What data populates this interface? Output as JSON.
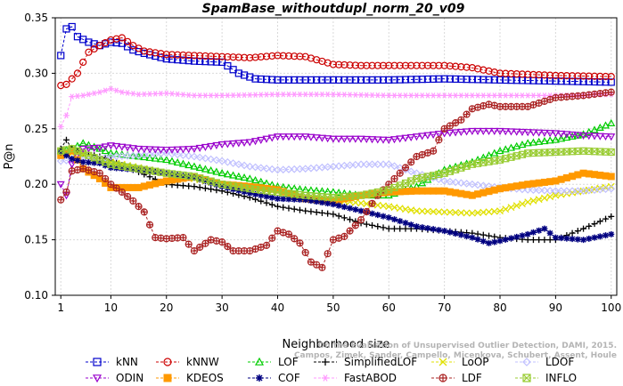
{
  "chart_data": {
    "type": "line",
    "title": "SpamBase_withoutdupl_norm_20_v09",
    "xlabel": "Neighborhood size",
    "ylabel": "P@n",
    "xlim": [
      0,
      101
    ],
    "ylim": [
      0.1,
      0.35
    ],
    "xticks": [
      1,
      10,
      20,
      30,
      40,
      50,
      60,
      70,
      80,
      90,
      100
    ],
    "yticks": [
      0.1,
      0.15,
      0.2,
      0.25,
      0.3,
      0.35
    ],
    "ytick_labels": [
      "0.10",
      "0.15",
      "0.20",
      "0.25",
      "0.30",
      "0.35"
    ],
    "grid": true,
    "legend_position": "bottom",
    "credit": "Campos, Zimek, Sander, Campello, Micenkova, Schubert, Assent, Houle",
    "credit2": "On the Evaluation of Unsupervised Outlier Detection, DAMI, 2015.",
    "series": [
      {
        "name": "kNN",
        "color": "#0000cc",
        "marker": "square",
        "points": [
          [
            1,
            0.316
          ],
          [
            2,
            0.34
          ],
          [
            3,
            0.342
          ],
          [
            4,
            0.333
          ],
          [
            6,
            0.328
          ],
          [
            8,
            0.325
          ],
          [
            10,
            0.328
          ],
          [
            12,
            0.327
          ],
          [
            14,
            0.321
          ],
          [
            16,
            0.318
          ],
          [
            20,
            0.313
          ],
          [
            25,
            0.311
          ],
          [
            30,
            0.31
          ],
          [
            33,
            0.3
          ],
          [
            36,
            0.295
          ],
          [
            40,
            0.294
          ],
          [
            50,
            0.294
          ],
          [
            60,
            0.294
          ],
          [
            70,
            0.295
          ],
          [
            80,
            0.294
          ],
          [
            90,
            0.293
          ],
          [
            100,
            0.292
          ]
        ]
      },
      {
        "name": "kNNW",
        "color": "#cc0000",
        "marker": "circle",
        "points": [
          [
            1,
            0.289
          ],
          [
            2,
            0.29
          ],
          [
            3,
            0.295
          ],
          [
            4,
            0.3
          ],
          [
            5,
            0.31
          ],
          [
            6,
            0.319
          ],
          [
            7,
            0.322
          ],
          [
            8,
            0.325
          ],
          [
            10,
            0.33
          ],
          [
            12,
            0.332
          ],
          [
            14,
            0.325
          ],
          [
            16,
            0.32
          ],
          [
            20,
            0.317
          ],
          [
            25,
            0.316
          ],
          [
            30,
            0.315
          ],
          [
            35,
            0.314
          ],
          [
            40,
            0.316
          ],
          [
            45,
            0.315
          ],
          [
            50,
            0.308
          ],
          [
            55,
            0.307
          ],
          [
            60,
            0.307
          ],
          [
            70,
            0.307
          ],
          [
            75,
            0.305
          ],
          [
            80,
            0.3
          ],
          [
            90,
            0.298
          ],
          [
            100,
            0.297
          ]
        ]
      },
      {
        "name": "LOF",
        "color": "#00cc00",
        "marker": "triangle-up",
        "points": [
          [
            1,
            0.23
          ],
          [
            3,
            0.232
          ],
          [
            5,
            0.237
          ],
          [
            8,
            0.232
          ],
          [
            10,
            0.228
          ],
          [
            15,
            0.225
          ],
          [
            20,
            0.222
          ],
          [
            25,
            0.216
          ],
          [
            30,
            0.21
          ],
          [
            35,
            0.205
          ],
          [
            40,
            0.198
          ],
          [
            45,
            0.195
          ],
          [
            50,
            0.193
          ],
          [
            55,
            0.19
          ],
          [
            60,
            0.19
          ],
          [
            65,
            0.198
          ],
          [
            70,
            0.213
          ],
          [
            75,
            0.22
          ],
          [
            80,
            0.23
          ],
          [
            85,
            0.237
          ],
          [
            90,
            0.24
          ],
          [
            95,
            0.245
          ],
          [
            100,
            0.255
          ]
        ]
      },
      {
        "name": "SimplifiedLOF",
        "color": "#000000",
        "marker": "plus",
        "points": [
          [
            1,
            0.232
          ],
          [
            2,
            0.24
          ],
          [
            3,
            0.232
          ],
          [
            5,
            0.228
          ],
          [
            8,
            0.225
          ],
          [
            10,
            0.222
          ],
          [
            13,
            0.215
          ],
          [
            16,
            0.209
          ],
          [
            20,
            0.2
          ],
          [
            25,
            0.198
          ],
          [
            30,
            0.194
          ],
          [
            35,
            0.188
          ],
          [
            40,
            0.18
          ],
          [
            45,
            0.176
          ],
          [
            50,
            0.173
          ],
          [
            55,
            0.165
          ],
          [
            60,
            0.16
          ],
          [
            65,
            0.16
          ],
          [
            70,
            0.158
          ],
          [
            75,
            0.156
          ],
          [
            80,
            0.152
          ],
          [
            85,
            0.15
          ],
          [
            90,
            0.15
          ],
          [
            95,
            0.16
          ],
          [
            100,
            0.171
          ]
        ]
      },
      {
        "name": "LoOP",
        "color": "#e0e000",
        "marker": "cross",
        "points": [
          [
            1,
            0.229
          ],
          [
            3,
            0.228
          ],
          [
            5,
            0.227
          ],
          [
            8,
            0.222
          ],
          [
            10,
            0.22
          ],
          [
            15,
            0.215
          ],
          [
            20,
            0.21
          ],
          [
            25,
            0.205
          ],
          [
            30,
            0.2
          ],
          [
            35,
            0.196
          ],
          [
            40,
            0.193
          ],
          [
            45,
            0.188
          ],
          [
            50,
            0.186
          ],
          [
            55,
            0.183
          ],
          [
            60,
            0.18
          ],
          [
            65,
            0.176
          ],
          [
            70,
            0.175
          ],
          [
            75,
            0.174
          ],
          [
            80,
            0.176
          ],
          [
            85,
            0.184
          ],
          [
            90,
            0.19
          ],
          [
            95,
            0.194
          ],
          [
            100,
            0.198
          ]
        ]
      },
      {
        "name": "LDOF",
        "color": "#c0c0ff",
        "marker": "diamond",
        "points": [
          [
            1,
            0.221
          ],
          [
            3,
            0.222
          ],
          [
            5,
            0.222
          ],
          [
            8,
            0.223
          ],
          [
            10,
            0.225
          ],
          [
            15,
            0.226
          ],
          [
            20,
            0.228
          ],
          [
            25,
            0.225
          ],
          [
            30,
            0.221
          ],
          [
            35,
            0.216
          ],
          [
            40,
            0.213
          ],
          [
            45,
            0.214
          ],
          [
            50,
            0.216
          ],
          [
            55,
            0.218
          ],
          [
            60,
            0.218
          ],
          [
            65,
            0.21
          ],
          [
            70,
            0.203
          ],
          [
            75,
            0.2
          ],
          [
            80,
            0.197
          ],
          [
            85,
            0.195
          ],
          [
            90,
            0.194
          ],
          [
            95,
            0.194
          ],
          [
            100,
            0.196
          ]
        ]
      },
      {
        "name": "ODIN",
        "color": "#9900cc",
        "marker": "triangle-down",
        "points": [
          [
            1,
            0.2
          ],
          [
            2,
            0.19
          ],
          [
            3,
            0.218
          ],
          [
            5,
            0.232
          ],
          [
            8,
            0.233
          ],
          [
            10,
            0.235
          ],
          [
            15,
            0.232
          ],
          [
            20,
            0.231
          ],
          [
            25,
            0.232
          ],
          [
            30,
            0.236
          ],
          [
            35,
            0.238
          ],
          [
            40,
            0.243
          ],
          [
            45,
            0.243
          ],
          [
            50,
            0.241
          ],
          [
            55,
            0.241
          ],
          [
            60,
            0.24
          ],
          [
            65,
            0.243
          ],
          [
            70,
            0.246
          ],
          [
            75,
            0.248
          ],
          [
            80,
            0.248
          ],
          [
            85,
            0.247
          ],
          [
            90,
            0.246
          ],
          [
            95,
            0.244
          ],
          [
            100,
            0.243
          ]
        ]
      },
      {
        "name": "KDEOS",
        "color": "#ff9900",
        "marker": "square-filled",
        "points": [
          [
            1,
            0.226
          ],
          [
            3,
            0.23
          ],
          [
            5,
            0.214
          ],
          [
            8,
            0.205
          ],
          [
            10,
            0.197
          ],
          [
            15,
            0.197
          ],
          [
            20,
            0.203
          ],
          [
            25,
            0.207
          ],
          [
            30,
            0.2
          ],
          [
            35,
            0.198
          ],
          [
            40,
            0.195
          ],
          [
            45,
            0.187
          ],
          [
            50,
            0.185
          ],
          [
            55,
            0.19
          ],
          [
            60,
            0.193
          ],
          [
            65,
            0.194
          ],
          [
            70,
            0.194
          ],
          [
            75,
            0.19
          ],
          [
            80,
            0.196
          ],
          [
            85,
            0.2
          ],
          [
            90,
            0.203
          ],
          [
            95,
            0.21
          ],
          [
            100,
            0.207
          ]
        ]
      },
      {
        "name": "COF",
        "color": "#000080",
        "marker": "star",
        "points": [
          [
            1,
            0.229
          ],
          [
            3,
            0.223
          ],
          [
            5,
            0.22
          ],
          [
            8,
            0.219
          ],
          [
            10,
            0.215
          ],
          [
            15,
            0.213
          ],
          [
            20,
            0.21
          ],
          [
            25,
            0.206
          ],
          [
            30,
            0.198
          ],
          [
            35,
            0.192
          ],
          [
            40,
            0.187
          ],
          [
            45,
            0.186
          ],
          [
            50,
            0.182
          ],
          [
            55,
            0.176
          ],
          [
            60,
            0.17
          ],
          [
            65,
            0.162
          ],
          [
            70,
            0.158
          ],
          [
            75,
            0.152
          ],
          [
            78,
            0.147
          ],
          [
            80,
            0.149
          ],
          [
            85,
            0.155
          ],
          [
            88,
            0.16
          ],
          [
            90,
            0.152
          ],
          [
            95,
            0.15
          ],
          [
            100,
            0.155
          ]
        ]
      },
      {
        "name": "FastABOD",
        "color": "#ff99ff",
        "marker": "star6",
        "points": [
          [
            1,
            0.252
          ],
          [
            2,
            0.262
          ],
          [
            3,
            0.279
          ],
          [
            5,
            0.28
          ],
          [
            8,
            0.283
          ],
          [
            10,
            0.286
          ],
          [
            12,
            0.283
          ],
          [
            15,
            0.281
          ],
          [
            20,
            0.282
          ],
          [
            25,
            0.28
          ],
          [
            30,
            0.28
          ],
          [
            40,
            0.281
          ],
          [
            50,
            0.281
          ],
          [
            60,
            0.28
          ],
          [
            70,
            0.28
          ],
          [
            80,
            0.28
          ],
          [
            90,
            0.28
          ],
          [
            100,
            0.281
          ]
        ]
      },
      {
        "name": "LDF",
        "color": "#aa2222",
        "marker": "circle-plus",
        "points": [
          [
            1,
            0.186
          ],
          [
            2,
            0.193
          ],
          [
            3,
            0.212
          ],
          [
            5,
            0.214
          ],
          [
            8,
            0.21
          ],
          [
            10,
            0.2
          ],
          [
            12,
            0.193
          ],
          [
            14,
            0.185
          ],
          [
            16,
            0.175
          ],
          [
            18,
            0.152
          ],
          [
            20,
            0.151
          ],
          [
            23,
            0.152
          ],
          [
            25,
            0.14
          ],
          [
            28,
            0.15
          ],
          [
            30,
            0.148
          ],
          [
            32,
            0.14
          ],
          [
            35,
            0.14
          ],
          [
            38,
            0.145
          ],
          [
            40,
            0.158
          ],
          [
            42,
            0.155
          ],
          [
            44,
            0.147
          ],
          [
            46,
            0.13
          ],
          [
            48,
            0.125
          ],
          [
            50,
            0.15
          ],
          [
            52,
            0.153
          ],
          [
            55,
            0.168
          ],
          [
            58,
            0.19
          ],
          [
            60,
            0.2
          ],
          [
            62,
            0.21
          ],
          [
            65,
            0.225
          ],
          [
            68,
            0.23
          ],
          [
            70,
            0.25
          ],
          [
            73,
            0.258
          ],
          [
            75,
            0.268
          ],
          [
            78,
            0.272
          ],
          [
            80,
            0.27
          ],
          [
            85,
            0.27
          ],
          [
            90,
            0.278
          ],
          [
            95,
            0.28
          ],
          [
            100,
            0.283
          ]
        ]
      },
      {
        "name": "INFLO",
        "color": "#99cc33",
        "marker": "square-x",
        "points": [
          [
            1,
            0.23
          ],
          [
            3,
            0.232
          ],
          [
            5,
            0.228
          ],
          [
            8,
            0.222
          ],
          [
            10,
            0.218
          ],
          [
            15,
            0.214
          ],
          [
            20,
            0.21
          ],
          [
            25,
            0.207
          ],
          [
            30,
            0.2
          ],
          [
            35,
            0.196
          ],
          [
            40,
            0.193
          ],
          [
            45,
            0.19
          ],
          [
            50,
            0.188
          ],
          [
            55,
            0.19
          ],
          [
            60,
            0.195
          ],
          [
            65,
            0.205
          ],
          [
            70,
            0.21
          ],
          [
            75,
            0.218
          ],
          [
            80,
            0.222
          ],
          [
            85,
            0.228
          ],
          [
            90,
            0.229
          ],
          [
            95,
            0.23
          ],
          [
            100,
            0.229
          ]
        ]
      }
    ]
  }
}
